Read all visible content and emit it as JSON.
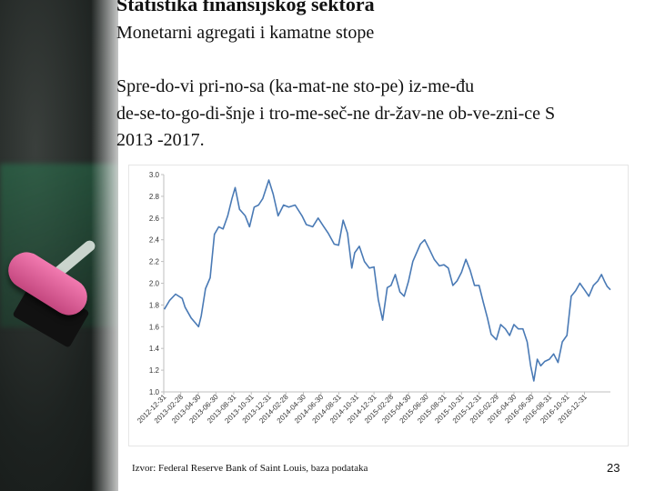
{
  "slide": {
    "title": "Statistika finansijskog sektora",
    "subtitle": "Monetarni agregati i kamatne stope",
    "heading_lines": [
      "Spre-do-vi pri-no-sa (ka-mat-ne sto-pe) iz-me-đu",
      "de-se-to-go-di-šnje i tro-me-seč-ne dr-žav-ne ob-ve-zni-ce S",
      "2013 -2017."
    ],
    "source": "Izvor: Federal Reserve Bank of Saint Louis, baza podataka",
    "page_number": "23"
  },
  "colors": {
    "line": "#4a7ab5",
    "axis": "#bfbfbf",
    "text": "#111111"
  },
  "chart_data": {
    "type": "line",
    "title": "",
    "xlabel": "",
    "ylabel": "",
    "ylim": [
      1.0,
      3.0
    ],
    "y_ticks": [
      "1.0",
      "1.2",
      "1.4",
      "1.6",
      "1.8",
      "2.0",
      "2.2",
      "2.4",
      "2.6",
      "2.8",
      "3.0"
    ],
    "x_tick_labels": [
      "2012-12-31",
      "2013-02-28",
      "2013-04-30",
      "2013-06-30",
      "2013-08-31",
      "2013-10-31",
      "2013-12-31",
      "2014-02-28",
      "2014-04-30",
      "2014-06-30",
      "2014-08-31",
      "2014-10-31",
      "2014-12-31",
      "2015-02-28",
      "2015-04-30",
      "2015-06-30",
      "2015-08-31",
      "2015-10-31",
      "2015-12-31",
      "2016-02-29",
      "2016-04-30",
      "2016-06-30",
      "2016-08-31",
      "2016-10-31",
      "2016-12-31"
    ],
    "x_start": "2012-12-31",
    "x_end": "2017-03-31",
    "series": [
      {
        "points": [
          [
            "2013-01-02",
            1.76
          ],
          [
            "2013-01-20",
            1.84
          ],
          [
            "2013-02-10",
            1.9
          ],
          [
            "2013-03-05",
            1.86
          ],
          [
            "2013-03-15",
            1.78
          ],
          [
            "2013-04-05",
            1.68
          ],
          [
            "2013-04-18",
            1.64
          ],
          [
            "2013-05-01",
            1.6
          ],
          [
            "2013-05-10",
            1.7
          ],
          [
            "2013-05-25",
            1.95
          ],
          [
            "2013-06-10",
            2.05
          ],
          [
            "2013-06-25",
            2.45
          ],
          [
            "2013-07-10",
            2.52
          ],
          [
            "2013-07-25",
            2.5
          ],
          [
            "2013-08-10",
            2.62
          ],
          [
            "2013-08-25",
            2.78
          ],
          [
            "2013-09-05",
            2.88
          ],
          [
            "2013-09-20",
            2.68
          ],
          [
            "2013-10-10",
            2.62
          ],
          [
            "2013-10-25",
            2.52
          ],
          [
            "2013-11-10",
            2.7
          ],
          [
            "2013-11-25",
            2.72
          ],
          [
            "2013-12-10",
            2.78
          ],
          [
            "2013-12-31",
            2.95
          ],
          [
            "2014-01-15",
            2.82
          ],
          [
            "2014-02-01",
            2.62
          ],
          [
            "2014-02-20",
            2.72
          ],
          [
            "2014-03-10",
            2.7
          ],
          [
            "2014-04-01",
            2.72
          ],
          [
            "2014-04-25",
            2.62
          ],
          [
            "2014-05-10",
            2.54
          ],
          [
            "2014-06-01",
            2.52
          ],
          [
            "2014-06-20",
            2.6
          ],
          [
            "2014-07-10",
            2.52
          ],
          [
            "2014-07-25",
            2.46
          ],
          [
            "2014-08-15",
            2.36
          ],
          [
            "2014-08-30",
            2.35
          ],
          [
            "2014-09-15",
            2.58
          ],
          [
            "2014-09-30",
            2.46
          ],
          [
            "2014-10-15",
            2.14
          ],
          [
            "2014-10-25",
            2.28
          ],
          [
            "2014-11-10",
            2.34
          ],
          [
            "2014-11-28",
            2.2
          ],
          [
            "2014-12-15",
            2.14
          ],
          [
            "2014-12-31",
            2.15
          ],
          [
            "2015-01-15",
            1.85
          ],
          [
            "2015-01-30",
            1.66
          ],
          [
            "2015-02-15",
            1.96
          ],
          [
            "2015-02-28",
            1.98
          ],
          [
            "2015-03-15",
            2.08
          ],
          [
            "2015-03-31",
            1.92
          ],
          [
            "2015-04-15",
            1.88
          ],
          [
            "2015-04-30",
            2.02
          ],
          [
            "2015-05-15",
            2.2
          ],
          [
            "2015-06-10",
            2.36
          ],
          [
            "2015-06-25",
            2.4
          ],
          [
            "2015-07-10",
            2.32
          ],
          [
            "2015-07-28",
            2.22
          ],
          [
            "2015-08-15",
            2.16
          ],
          [
            "2015-08-31",
            2.17
          ],
          [
            "2015-09-15",
            2.14
          ],
          [
            "2015-10-01",
            1.98
          ],
          [
            "2015-10-15",
            2.02
          ],
          [
            "2015-10-31",
            2.1
          ],
          [
            "2015-11-15",
            2.22
          ],
          [
            "2015-11-30",
            2.12
          ],
          [
            "2015-12-15",
            1.98
          ],
          [
            "2015-12-31",
            1.98
          ],
          [
            "2016-01-15",
            1.82
          ],
          [
            "2016-01-29",
            1.68
          ],
          [
            "2016-02-11",
            1.53
          ],
          [
            "2016-02-29",
            1.48
          ],
          [
            "2016-03-15",
            1.62
          ],
          [
            "2016-03-31",
            1.58
          ],
          [
            "2016-04-15",
            1.52
          ],
          [
            "2016-04-30",
            1.62
          ],
          [
            "2016-05-15",
            1.58
          ],
          [
            "2016-05-31",
            1.58
          ],
          [
            "2016-06-15",
            1.46
          ],
          [
            "2016-06-27",
            1.24
          ],
          [
            "2016-07-08",
            1.1
          ],
          [
            "2016-07-20",
            1.3
          ],
          [
            "2016-08-01",
            1.24
          ],
          [
            "2016-08-15",
            1.28
          ],
          [
            "2016-08-31",
            1.3
          ],
          [
            "2016-09-15",
            1.35
          ],
          [
            "2016-09-30",
            1.27
          ],
          [
            "2016-10-15",
            1.46
          ],
          [
            "2016-10-31",
            1.52
          ],
          [
            "2016-11-15",
            1.88
          ],
          [
            "2016-11-30",
            1.93
          ],
          [
            "2016-12-15",
            2.0
          ],
          [
            "2016-12-31",
            1.94
          ],
          [
            "2017-01-15",
            1.88
          ],
          [
            "2017-01-31",
            1.98
          ],
          [
            "2017-02-15",
            2.02
          ],
          [
            "2017-02-28",
            2.08
          ],
          [
            "2017-03-10",
            2.02
          ],
          [
            "2017-03-20",
            1.97
          ],
          [
            "2017-03-31",
            1.94
          ]
        ]
      }
    ],
    "grid": false,
    "legend": "none"
  }
}
